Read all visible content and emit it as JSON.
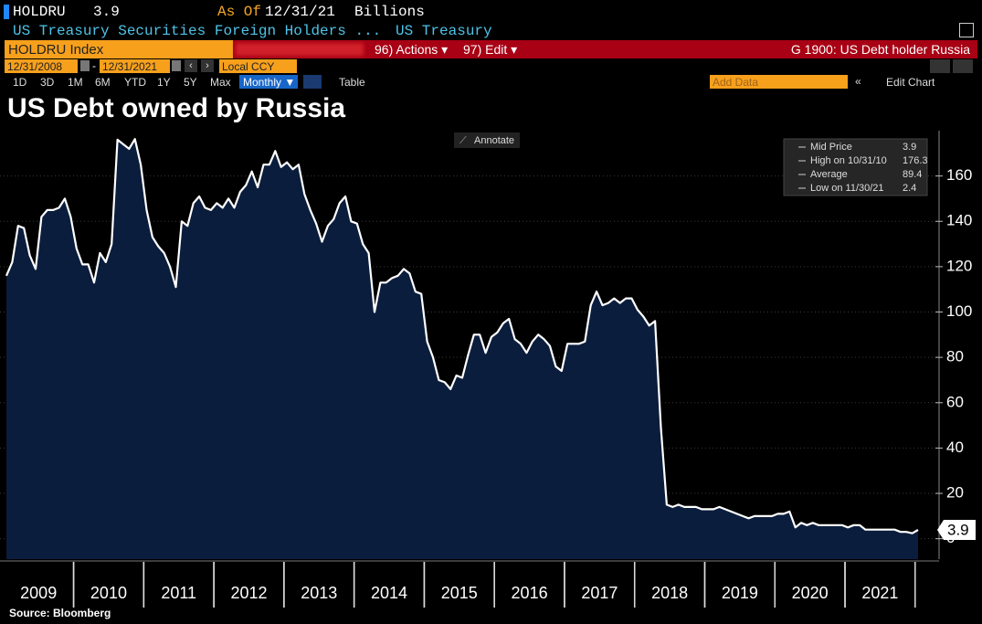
{
  "header": {
    "ticker": "HOLDRU",
    "price": "3.9",
    "as_of_label": "As Of",
    "as_of": "12/31/21",
    "units": "Billions",
    "description": "US Treasury Securities Foreign Holders ...",
    "source_name": "US Treasury",
    "security": "HOLDRU Index",
    "actions": "96) Actions ▾",
    "edit": "97) Edit ▾",
    "chart_name": "G 1900: US Debt holder Russia",
    "start_date": "12/31/2008",
    "end_date": "12/31/2021",
    "currency": "Local CCY",
    "ranges": [
      "1D",
      "3D",
      "1M",
      "6M",
      "YTD",
      "1Y",
      "5Y",
      "Max"
    ],
    "frequency": "Monthly ▼",
    "table": "Table",
    "add_data": "Add Data",
    "edit_chart": "Edit Chart"
  },
  "chart_data": {
    "type": "area",
    "title": "US Debt owned by Russia",
    "annotate": "Annotate",
    "source": "Source: Bloomberg",
    "color": "#ffffff",
    "fill": "#0b1d3d",
    "grid": true,
    "stats": [
      {
        "label": "Mid Price",
        "value": 3.9
      },
      {
        "label": "High on 10/31/10",
        "value": 176.3
      },
      {
        "label": "Average",
        "value": 89.4
      },
      {
        "label": "Low on 11/30/21",
        "value": 2.4
      }
    ],
    "ylim": [
      -9,
      180
    ],
    "yticks": [
      0,
      20,
      40,
      60,
      80,
      100,
      120,
      140,
      160
    ],
    "categories": [
      null,
      null,
      null,
      null,
      null,
      null,
      "2009",
      null,
      null,
      null,
      null,
      null,
      null,
      null,
      null,
      null,
      null,
      null,
      "2010",
      null,
      null,
      null,
      null,
      null,
      null,
      null,
      null,
      null,
      null,
      null,
      "2011",
      null,
      null,
      null,
      null,
      null,
      null,
      null,
      null,
      null,
      null,
      null,
      "2012",
      null,
      null,
      null,
      null,
      null,
      null,
      null,
      null,
      null,
      null,
      null,
      "2013",
      null,
      null,
      null,
      null,
      null,
      null,
      null,
      null,
      null,
      null,
      null,
      "2014",
      null,
      null,
      null,
      null,
      null,
      null,
      null,
      null,
      null,
      null,
      null,
      "2015",
      null,
      null,
      null,
      null,
      null,
      null,
      null,
      null,
      null,
      null,
      null,
      "2016",
      null,
      null,
      null,
      null,
      null,
      null,
      null,
      null,
      null,
      null,
      null,
      "2017",
      null,
      null,
      null,
      null,
      null,
      null,
      null,
      null,
      null,
      null,
      null,
      "2018",
      null,
      null,
      null,
      null,
      null,
      null,
      null,
      null,
      null,
      null,
      null,
      "2019",
      null,
      null,
      null,
      null,
      null,
      null,
      null,
      null,
      null,
      null,
      null,
      "2020",
      null,
      null,
      null,
      null,
      null,
      null,
      null,
      null,
      null,
      null,
      null,
      "2021",
      null,
      null,
      null,
      null,
      null,
      null
    ],
    "values": [
      116,
      122,
      138,
      137,
      125,
      119,
      142,
      145,
      145,
      146,
      150,
      142,
      128,
      121,
      121,
      113,
      126,
      122,
      130,
      176,
      174,
      172,
      176.3,
      165,
      145,
      133,
      129,
      126,
      120,
      111,
      140,
      138,
      148,
      151,
      146,
      145,
      148,
      146,
      150,
      146,
      153,
      156,
      162,
      155,
      165,
      165,
      171,
      164,
      166,
      163,
      165,
      152,
      145,
      139,
      131,
      138,
      141,
      148,
      151,
      140,
      139,
      130,
      126,
      100,
      113,
      113,
      115,
      116,
      119,
      117,
      109,
      108,
      87,
      80,
      70,
      69,
      66,
      72,
      71,
      81,
      90,
      90,
      82,
      89,
      91,
      95,
      97,
      88,
      86,
      82,
      87,
      90,
      88,
      85,
      76,
      74,
      86,
      86,
      86,
      87,
      103,
      109,
      103,
      104,
      106,
      104,
      106,
      106,
      101,
      98,
      94,
      96,
      49,
      15,
      14,
      15,
      14,
      14,
      14,
      13,
      13,
      13,
      14,
      13,
      12,
      11,
      10,
      9,
      10,
      10,
      10,
      10,
      11,
      11,
      12,
      5,
      7,
      6,
      7,
      6,
      6,
      6,
      6,
      6,
      5,
      6,
      6,
      4,
      4,
      4,
      4,
      4,
      4,
      3,
      3,
      2.4,
      3.9
    ]
  }
}
